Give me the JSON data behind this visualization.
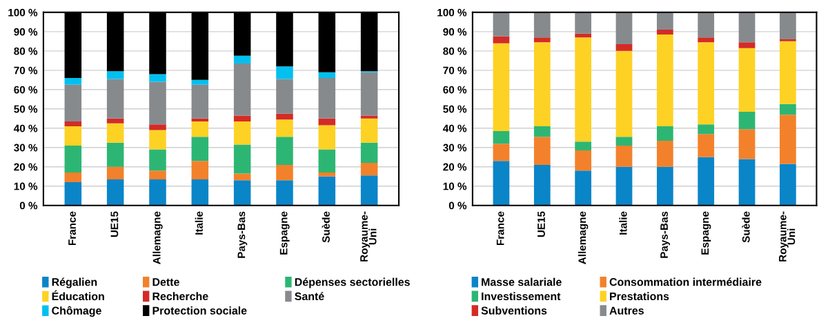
{
  "chart_data": [
    {
      "type": "bar",
      "stacked": true,
      "categories": [
        "France",
        "UE15",
        "Allemagne",
        "Italie",
        "Pays-Bas",
        "Espagne",
        "Suède",
        "Royaume-\nUni"
      ],
      "ylim": [
        0,
        100
      ],
      "yticks": [
        {
          "value": 0,
          "label": "0 %"
        },
        {
          "value": 10,
          "label": "10 %"
        },
        {
          "value": 20,
          "label": "20 %"
        },
        {
          "value": 30,
          "label": "30 %"
        },
        {
          "value": 40,
          "label": "40 %"
        },
        {
          "value": 50,
          "label": "50 %"
        },
        {
          "value": 60,
          "label": "60 %"
        },
        {
          "value": 70,
          "label": "70 %"
        },
        {
          "value": 80,
          "label": "80 %"
        },
        {
          "value": 90,
          "label": "90 %"
        },
        {
          "value": 100,
          "label": "100 %"
        }
      ],
      "grid": "y",
      "legend": "bottom",
      "series": [
        {
          "name": "Régalien",
          "color": "#0a85c8",
          "values": [
            12,
            13.5,
            13.5,
            13.5,
            13,
            13,
            15,
            15.5
          ]
        },
        {
          "name": "Dette",
          "color": "#f3812b",
          "values": [
            5,
            6.5,
            4.5,
            9.5,
            3.5,
            8,
            2,
            6.5
          ]
        },
        {
          "name": "Dépenses sectorielles",
          "color": "#2db673",
          "values": [
            14,
            12.5,
            11,
            12.5,
            15,
            14.5,
            12,
            10.5
          ]
        },
        {
          "name": "Éducation",
          "color": "#fdd224",
          "values": [
            10,
            10,
            10,
            8,
            12,
            9,
            12.5,
            12.5
          ]
        },
        {
          "name": "Recherche",
          "color": "#d42b27",
          "values": [
            2.5,
            2.5,
            3,
            1.5,
            3,
            3,
            3.5,
            1.5
          ]
        },
        {
          "name": "Santé",
          "color": "#878a8d",
          "values": [
            19,
            20.5,
            22,
            17.5,
            27,
            18,
            21,
            22.5
          ]
        },
        {
          "name": "Chômage",
          "color": "#00c0f0",
          "values": [
            3.5,
            4,
            4,
            2.5,
            4,
            6.5,
            3,
            0.5
          ]
        },
        {
          "name": "Protection sociale",
          "color": "#000000",
          "values": [
            34,
            30.5,
            32,
            35,
            22.5,
            28,
            31,
            30.5
          ]
        }
      ]
    },
    {
      "type": "bar",
      "stacked": true,
      "categories": [
        "France",
        "UE15",
        "Allemagne",
        "Italie",
        "Pays-Bas",
        "Espagne",
        "Suède",
        "Royaume-\nUni"
      ],
      "ylim": [
        0,
        100
      ],
      "yticks": [
        {
          "value": 0,
          "label": "0 %"
        },
        {
          "value": 10,
          "label": "10 %"
        },
        {
          "value": 20,
          "label": "20 %"
        },
        {
          "value": 30,
          "label": "30 %"
        },
        {
          "value": 40,
          "label": "40 %"
        },
        {
          "value": 50,
          "label": "50 %"
        },
        {
          "value": 60,
          "label": "60 %"
        },
        {
          "value": 70,
          "label": "70 %"
        },
        {
          "value": 80,
          "label": "80 %"
        },
        {
          "value": 90,
          "label": "90 %"
        },
        {
          "value": 100,
          "label": "100 %"
        }
      ],
      "grid": "y",
      "legend": "bottom",
      "series": [
        {
          "name": "Masse salariale",
          "color": "#0a85c8",
          "values": [
            23,
            21,
            18,
            20,
            20,
            25,
            24,
            21.5
          ]
        },
        {
          "name": "Consommation intermédiaire",
          "color": "#f3812b",
          "values": [
            9,
            14.5,
            10.5,
            11,
            13.5,
            12,
            15.5,
            25.5
          ]
        },
        {
          "name": "Investissement",
          "color": "#2db673",
          "values": [
            6.5,
            5.5,
            4.5,
            4.5,
            7.5,
            5,
            9,
            5.5
          ]
        },
        {
          "name": "Prestations",
          "color": "#fdd224",
          "values": [
            45.5,
            43.5,
            54,
            44.5,
            47.5,
            42.5,
            33,
            32.5
          ]
        },
        {
          "name": "Subventions",
          "color": "#d42b27",
          "values": [
            3.5,
            2.5,
            2,
            3.5,
            2.5,
            2.5,
            3,
            1
          ]
        },
        {
          "name": "Autres",
          "color": "#878a8d",
          "values": [
            12.5,
            13,
            11,
            16.5,
            9,
            13,
            15.5,
            14
          ]
        }
      ]
    }
  ]
}
